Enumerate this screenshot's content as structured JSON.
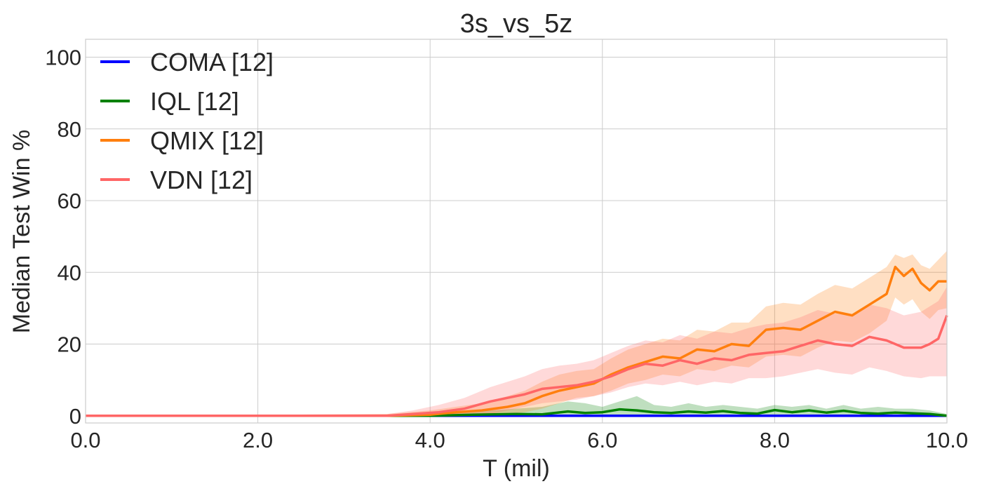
{
  "chart_data": {
    "type": "line",
    "title": "3s_vs_5z",
    "xlabel": "T (mil)",
    "ylabel": "Median Test Win %",
    "xlim": [
      0,
      10
    ],
    "ylim": [
      -2,
      105
    ],
    "xticks": [
      0,
      2,
      4,
      6,
      8,
      10
    ],
    "xtick_labels": [
      "0.0",
      "2.0",
      "4.0",
      "6.0",
      "8.0",
      "10.0"
    ],
    "yticks": [
      0,
      20,
      40,
      60,
      80,
      100
    ],
    "ytick_labels": [
      "0",
      "20",
      "40",
      "60",
      "80",
      "100"
    ],
    "grid": true,
    "legend_position": "top-left",
    "series": [
      {
        "name": "COMA [12]",
        "color": "#0000ff",
        "x": [
          0,
          2,
          4,
          6,
          8,
          10
        ],
        "y": [
          0,
          0,
          0,
          0,
          0,
          0
        ],
        "lower": [
          0,
          0,
          0,
          0,
          0,
          0
        ],
        "upper": [
          0,
          0,
          0,
          0,
          0,
          0
        ]
      },
      {
        "name": "IQL [12]",
        "color": "#008000",
        "x": [
          0,
          4.0,
          4.5,
          5.0,
          5.3,
          5.6,
          5.8,
          6.0,
          6.2,
          6.4,
          6.6,
          6.8,
          7.0,
          7.2,
          7.4,
          7.6,
          7.8,
          8.0,
          8.2,
          8.4,
          8.6,
          8.8,
          9.0,
          9.2,
          9.4,
          9.6,
          9.8,
          10.0
        ],
        "y": [
          0,
          0,
          0.3,
          0.5,
          0.4,
          1.2,
          0.8,
          1.0,
          1.8,
          1.5,
          1.0,
          0.8,
          1.2,
          0.9,
          1.3,
          0.8,
          0.6,
          1.6,
          1.0,
          1.5,
          0.9,
          1.4,
          0.8,
          0.6,
          0.9,
          0.7,
          0.5,
          0
        ],
        "lower": [
          0,
          0,
          0,
          0,
          0,
          0,
          0,
          0,
          0,
          0,
          0,
          0,
          0,
          0,
          0,
          0,
          0,
          0,
          0,
          0,
          0,
          0,
          0,
          0,
          0,
          0,
          0,
          0
        ],
        "upper": [
          0,
          0.2,
          1.2,
          2.0,
          2.5,
          4.0,
          3.5,
          2.5,
          4.0,
          5.5,
          3.0,
          2.5,
          3.5,
          2.5,
          3.0,
          2.5,
          2.0,
          3.0,
          2.5,
          3.0,
          2.0,
          3.0,
          2.0,
          2.5,
          2.0,
          2.0,
          1.5,
          0.5
        ]
      },
      {
        "name": "QMIX [12]",
        "color": "#ff7f0e",
        "x": [
          0,
          3.5,
          4.0,
          4.3,
          4.6,
          4.9,
          5.1,
          5.3,
          5.5,
          5.7,
          5.9,
          6.1,
          6.3,
          6.5,
          6.7,
          6.9,
          7.1,
          7.3,
          7.5,
          7.7,
          7.9,
          8.1,
          8.3,
          8.5,
          8.7,
          8.9,
          9.1,
          9.3,
          9.4,
          9.5,
          9.6,
          9.7,
          9.8,
          9.9,
          10.0
        ],
        "y": [
          0,
          0,
          0.3,
          1.0,
          1.5,
          2.5,
          3.5,
          5.5,
          7.0,
          8.0,
          9.0,
          11.5,
          13.5,
          15.0,
          16.5,
          16.0,
          18.5,
          18.0,
          20.0,
          19.5,
          24.0,
          24.5,
          24.0,
          26.5,
          29.0,
          28.0,
          31.0,
          34.0,
          41.5,
          39.0,
          41.0,
          37.0,
          35.0,
          37.5,
          37.5
        ],
        "lower": [
          0,
          0,
          0,
          0,
          0,
          0.5,
          1.0,
          2.0,
          3.5,
          5.0,
          5.5,
          7.0,
          9.0,
          10.0,
          11.5,
          11.0,
          13.0,
          12.5,
          14.0,
          13.5,
          16.5,
          17.0,
          16.5,
          19.0,
          21.0,
          20.5,
          23.0,
          26.5,
          33.0,
          31.0,
          32.5,
          29.0,
          27.0,
          29.5,
          30.0
        ],
        "upper": [
          0,
          0.5,
          1.5,
          2.5,
          3.5,
          5.5,
          7.0,
          9.5,
          11.5,
          12.5,
          13.0,
          16.0,
          18.5,
          20.0,
          21.5,
          21.0,
          24.0,
          23.5,
          26.0,
          26.0,
          30.5,
          31.5,
          31.0,
          34.0,
          36.5,
          35.5,
          38.5,
          41.5,
          45.0,
          44.0,
          45.0,
          42.0,
          41.0,
          43.5,
          46.0
        ]
      },
      {
        "name": "VDN [12]",
        "color": "#ff6666",
        "x": [
          0,
          3.5,
          3.8,
          4.1,
          4.4,
          4.7,
          4.9,
          5.1,
          5.3,
          5.5,
          5.7,
          5.9,
          6.1,
          6.3,
          6.5,
          6.7,
          6.9,
          7.1,
          7.3,
          7.5,
          7.7,
          7.9,
          8.1,
          8.3,
          8.5,
          8.7,
          8.9,
          9.1,
          9.3,
          9.5,
          9.7,
          9.8,
          9.9,
          10.0
        ],
        "y": [
          0,
          0,
          0.5,
          1.0,
          2.0,
          4.0,
          5.0,
          6.0,
          7.5,
          8.0,
          8.5,
          9.5,
          11.0,
          13.0,
          14.5,
          14.0,
          15.5,
          14.5,
          16.0,
          15.5,
          17.0,
          17.5,
          18.0,
          19.5,
          21.0,
          20.0,
          19.5,
          22.0,
          21.0,
          19.0,
          19.0,
          20.0,
          21.5,
          28.0
        ],
        "lower": [
          0,
          0,
          0,
          0,
          0,
          0.5,
          1.5,
          2.5,
          3.5,
          4.0,
          4.5,
          5.5,
          6.5,
          8.0,
          9.0,
          8.5,
          9.5,
          8.5,
          9.5,
          9.0,
          10.5,
          10.5,
          11.0,
          12.0,
          13.0,
          12.0,
          11.5,
          13.5,
          12.5,
          11.0,
          10.5,
          11.0,
          11.0,
          11.0
        ],
        "upper": [
          0,
          0.5,
          1.5,
          3.0,
          5.0,
          8.0,
          9.5,
          11.0,
          13.0,
          14.0,
          14.5,
          15.5,
          17.5,
          19.5,
          21.0,
          20.5,
          22.5,
          21.5,
          23.5,
          23.0,
          24.5,
          25.5,
          26.0,
          27.5,
          29.5,
          28.5,
          28.0,
          31.0,
          30.0,
          28.0,
          29.0,
          30.5,
          32.0,
          36.0
        ]
      }
    ]
  }
}
